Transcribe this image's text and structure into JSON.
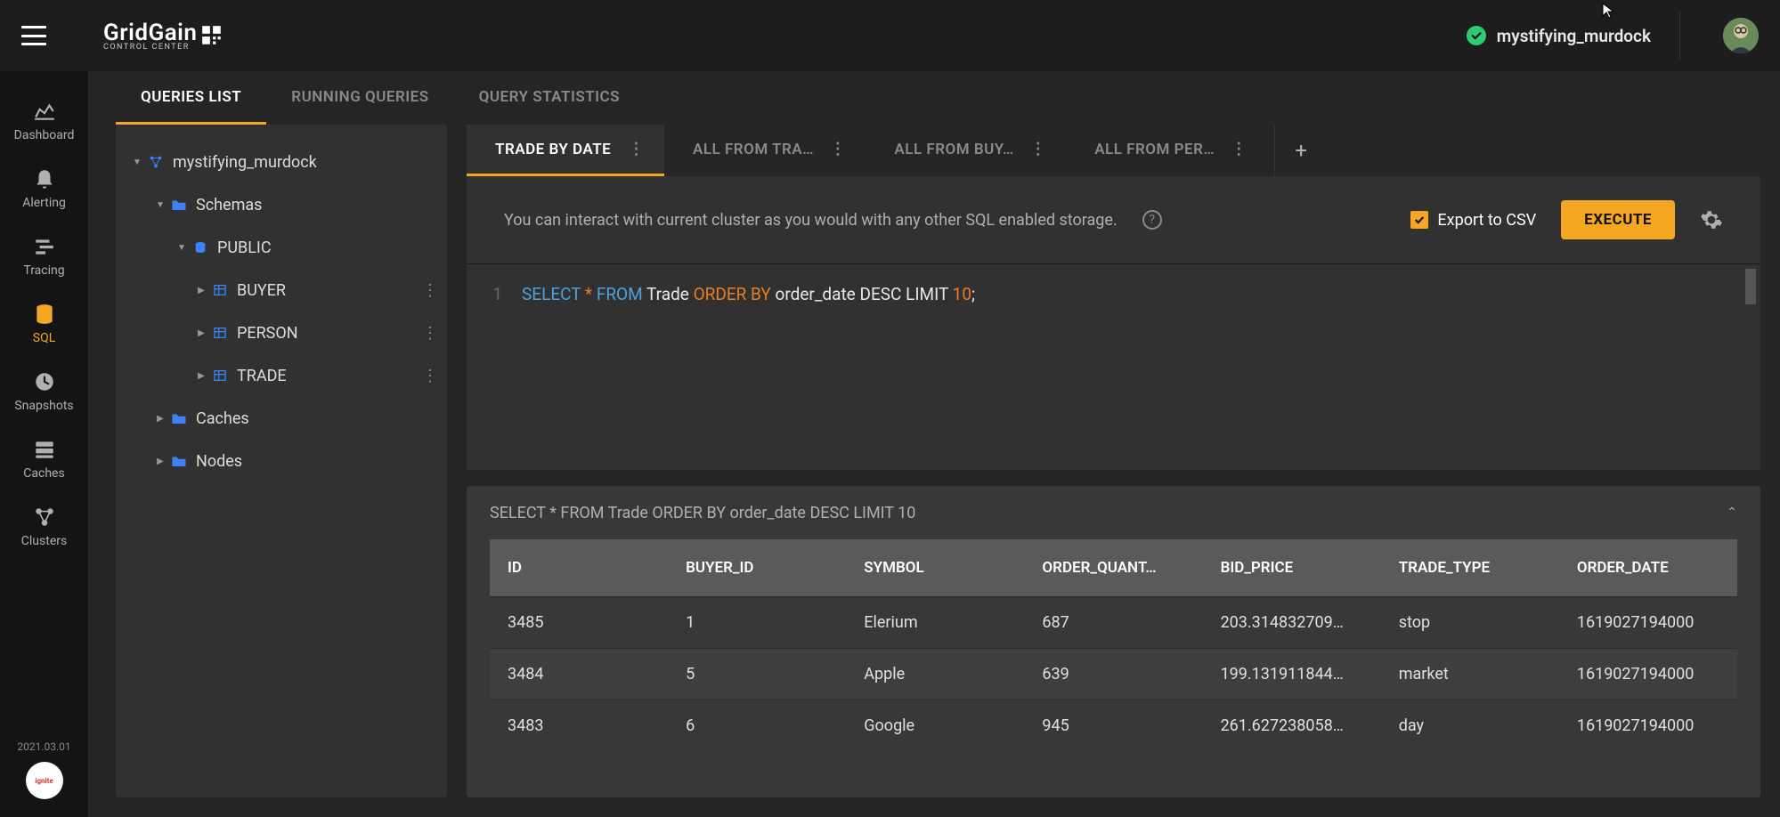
{
  "header": {
    "product_name": "GridGain",
    "product_sub": "CONTROL CENTER",
    "cluster_name": "mystifying_murdock"
  },
  "nav": {
    "items": [
      {
        "label": "Dashboard",
        "icon": "dashboard"
      },
      {
        "label": "Alerting",
        "icon": "bell"
      },
      {
        "label": "Tracing",
        "icon": "tracing"
      },
      {
        "label": "SQL",
        "icon": "db",
        "active": true
      },
      {
        "label": "Snapshots",
        "icon": "clock"
      },
      {
        "label": "Caches",
        "icon": "server"
      },
      {
        "label": "Clusters",
        "icon": "clusters"
      }
    ],
    "version": "2021.03.01",
    "badge": "ignite"
  },
  "main_tabs": [
    {
      "label": "QUERIES LIST",
      "active": true
    },
    {
      "label": "RUNNING QUERIES"
    },
    {
      "label": "QUERY STATISTICS"
    }
  ],
  "explorer": {
    "root": "mystifying_murdock",
    "schemas_label": "Schemas",
    "public_label": "PUBLIC",
    "tables": [
      "BUYER",
      "PERSON",
      "TRADE"
    ],
    "caches_label": "Caches",
    "nodes_label": "Nodes"
  },
  "query_tabs": [
    {
      "label": "TRADE BY DATE",
      "active": true
    },
    {
      "label": "ALL FROM TRA…"
    },
    {
      "label": "ALL FROM BUY…"
    },
    {
      "label": "ALL FROM PER…"
    }
  ],
  "toolbar": {
    "hint": "You can interact with current cluster as you would with any other SQL enabled storage.",
    "csv_label": "Export to CSV",
    "execute": "EXECUTE"
  },
  "editor": {
    "line_no": "1",
    "tokens": [
      {
        "t": "SELECT",
        "c": "kw1"
      },
      {
        "t": " "
      },
      {
        "t": "*",
        "c": "kw2"
      },
      {
        "t": " "
      },
      {
        "t": "FROM",
        "c": "kw1"
      },
      {
        "t": " Trade "
      },
      {
        "t": "ORDER BY",
        "c": "kw2"
      },
      {
        "t": " order_date "
      },
      {
        "t": "DESC LIMIT ",
        "c": ""
      },
      {
        "t": "10",
        "c": "kw2"
      },
      {
        "t": ";"
      }
    ]
  },
  "results": {
    "query_echo": "SELECT * FROM Trade ORDER BY order_date DESC LIMIT 10",
    "columns": [
      "ID",
      "BUYER_ID",
      "SYMBOL",
      "ORDER_QUANT…",
      "BID_PRICE",
      "TRADE_TYPE",
      "ORDER_DATE"
    ],
    "rows": [
      [
        "3485",
        "1",
        "Elerium",
        "687",
        "203.314832709…",
        "stop",
        "1619027194000"
      ],
      [
        "3484",
        "5",
        "Apple",
        "639",
        "199.131911844…",
        "market",
        "1619027194000"
      ],
      [
        "3483",
        "6",
        "Google",
        "945",
        "261.627238058…",
        "day",
        "1619027194000"
      ]
    ],
    "col_widths": [
      "198px",
      "198px",
      "198px",
      "198px",
      "198px",
      "198px",
      "198px"
    ]
  }
}
